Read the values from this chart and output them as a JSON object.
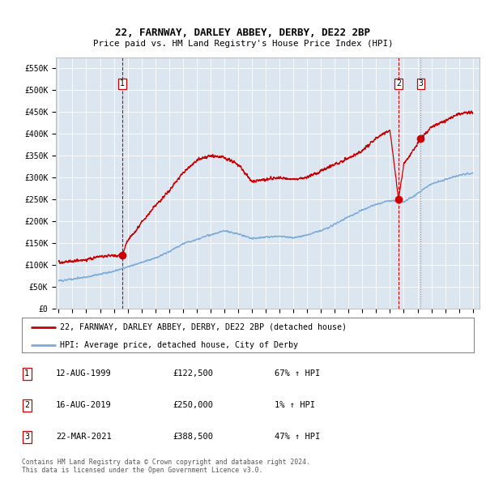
{
  "title1": "22, FARNWAY, DARLEY ABBEY, DERBY, DE22 2BP",
  "title2": "Price paid vs. HM Land Registry's House Price Index (HPI)",
  "ylabel_ticks": [
    "£0",
    "£50K",
    "£100K",
    "£150K",
    "£200K",
    "£250K",
    "£300K",
    "£350K",
    "£400K",
    "£450K",
    "£500K",
    "£550K"
  ],
  "ytick_values": [
    0,
    50000,
    100000,
    150000,
    200000,
    250000,
    300000,
    350000,
    400000,
    450000,
    500000,
    550000
  ],
  "ylim": [
    0,
    575000
  ],
  "xlim_start": 1994.8,
  "xlim_end": 2025.5,
  "background_color": "#dce6f1",
  "legend_label_red": "22, FARNWAY, DARLEY ABBEY, DERBY, DE22 2BP (detached house)",
  "legend_label_blue": "HPI: Average price, detached house, City of Derby",
  "transactions": [
    {
      "label": "1",
      "date_x": 1999.61,
      "price": 122500
    },
    {
      "label": "2",
      "date_x": 2019.62,
      "price": 250000
    },
    {
      "label": "3",
      "date_x": 2021.22,
      "price": 388500
    }
  ],
  "table_rows": [
    {
      "num": "1",
      "date": "12-AUG-1999",
      "price": "£122,500",
      "pct": "67% ↑ HPI"
    },
    {
      "num": "2",
      "date": "16-AUG-2019",
      "price": "£250,000",
      "pct": "1% ↑ HPI"
    },
    {
      "num": "3",
      "date": "22-MAR-2021",
      "price": "£388,500",
      "pct": "47% ↑ HPI"
    }
  ],
  "footer": "Contains HM Land Registry data © Crown copyright and database right 2024.\nThis data is licensed under the Open Government Licence v3.0.",
  "red_color": "#cc0000",
  "blue_color": "#7aabdb",
  "hpi_anchors_x": [
    1995,
    1996,
    1997,
    1998,
    1999,
    2000,
    2001,
    2002,
    2003,
    2004,
    2005,
    2006,
    2007,
    2008,
    2009,
    2010,
    2011,
    2012,
    2013,
    2014,
    2015,
    2016,
    2017,
    2018,
    2019,
    2020,
    2021,
    2022,
    2023,
    2024,
    2025
  ],
  "hpi_anchors_y": [
    63000,
    67000,
    72000,
    78000,
    85000,
    95000,
    105000,
    115000,
    130000,
    148000,
    158000,
    168000,
    178000,
    170000,
    160000,
    163000,
    165000,
    162000,
    168000,
    178000,
    192000,
    210000,
    225000,
    238000,
    247000,
    243000,
    263000,
    285000,
    295000,
    305000,
    310000
  ],
  "red_anchors_x": [
    1995,
    1996,
    1997,
    1998,
    1999.61,
    2000,
    2001,
    2002,
    2003,
    2004,
    2005,
    2006,
    2007,
    2008,
    2009,
    2010,
    2011,
    2012,
    2013,
    2014,
    2015,
    2016,
    2017,
    2018,
    2019,
    2019.62,
    2020,
    2021.22,
    2022,
    2023,
    2024,
    2025
  ],
  "red_anchors_y": [
    105000,
    108000,
    112000,
    118000,
    122500,
    155000,
    195000,
    235000,
    270000,
    310000,
    340000,
    350000,
    345000,
    330000,
    290000,
    295000,
    300000,
    295000,
    300000,
    315000,
    330000,
    345000,
    360000,
    390000,
    408000,
    250000,
    330000,
    388500,
    415000,
    430000,
    445000,
    450000
  ]
}
